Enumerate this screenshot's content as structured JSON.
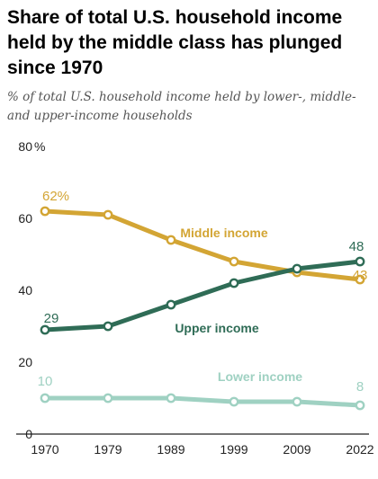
{
  "chart_data": {
    "type": "line",
    "title": "Share of total U.S. household income held by the middle class has plunged since 1970",
    "subtitle": "% of total U.S. household income held by lower-, middle- and upper-income households",
    "x": [
      1970,
      1979,
      1989,
      1999,
      2009,
      2022
    ],
    "xticks": [
      "1970",
      "1979",
      "1989",
      "1999",
      "2009",
      "2022"
    ],
    "ylim": [
      0,
      80
    ],
    "yticks": [
      "0",
      "20",
      "40",
      "60",
      "80"
    ],
    "ytick_unit": "%",
    "grid": false,
    "series": [
      {
        "name": "Middle income",
        "color": "#d3a534",
        "values": [
          62,
          61,
          54,
          48,
          45,
          43
        ],
        "start_label": "62%",
        "end_label": "43"
      },
      {
        "name": "Upper income",
        "color": "#2f6c56",
        "values": [
          29,
          30,
          36,
          42,
          46,
          48
        ],
        "start_label": "29",
        "end_label": "48"
      },
      {
        "name": "Lower income",
        "color": "#9fd1c2",
        "values": [
          10,
          10,
          10,
          9,
          9,
          8
        ],
        "start_label": "10",
        "end_label": "8"
      }
    ]
  }
}
